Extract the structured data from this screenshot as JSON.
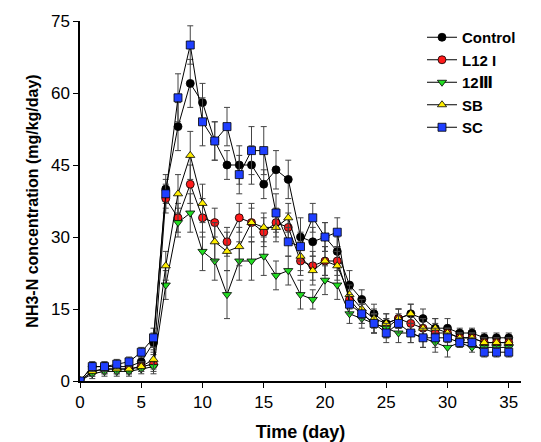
{
  "chart_data": {
    "type": "line",
    "x_label": "Time (day)",
    "y_label": "NH3-N concentration (mg/kg/day)",
    "x": [
      0,
      1,
      2,
      3,
      4,
      5,
      6,
      7,
      8,
      9,
      10,
      11,
      12,
      13,
      14,
      15,
      16,
      17,
      18,
      19,
      20,
      21,
      22,
      23,
      24,
      25,
      26,
      27,
      28,
      29,
      30,
      31,
      32,
      33,
      34,
      35
    ],
    "xlim": [
      0,
      36
    ],
    "xticks": [
      0,
      5,
      10,
      15,
      20,
      25,
      30,
      35
    ],
    "ylim": [
      0,
      75
    ],
    "yticks": [
      0,
      15,
      30,
      45,
      60,
      75
    ],
    "grid": false,
    "legend": "upper right",
    "series": [
      {
        "name": "Control",
        "color": "#000000",
        "marker": "circle",
        "values": [
          0,
          3,
          3,
          3,
          3,
          4,
          8,
          40,
          53,
          62,
          58,
          50,
          45,
          45,
          45,
          41,
          44,
          42,
          30,
          29,
          30,
          27,
          20,
          17,
          14,
          12,
          13,
          14,
          13,
          11,
          11,
          10,
          10,
          9,
          9,
          9
        ],
        "errors": [
          0.5,
          1,
          1,
          1,
          1,
          1,
          2,
          3,
          5,
          5,
          4,
          4,
          3,
          4,
          4,
          3,
          4,
          4,
          4,
          3,
          3,
          3,
          3,
          2,
          2,
          2,
          2,
          2,
          2,
          2,
          2,
          1,
          1,
          1,
          1,
          1
        ]
      },
      {
        "name": "L12 I",
        "color": "#ff1a1a",
        "marker": "circle",
        "values": [
          0,
          2,
          2.5,
          2.5,
          2.5,
          3,
          3.5,
          38,
          34,
          41,
          34,
          33,
          29,
          34,
          33,
          31,
          33,
          32,
          25,
          24,
          25,
          25,
          17,
          14,
          12,
          11,
          13,
          12,
          11,
          10,
          10,
          9,
          9,
          8,
          8,
          8
        ],
        "errors": [
          0.5,
          1,
          1,
          1,
          1,
          1,
          2,
          3,
          3,
          4,
          4,
          3,
          3,
          3,
          3,
          3,
          3,
          3,
          3,
          3,
          3,
          3,
          2,
          2,
          2,
          2,
          2,
          2,
          2,
          2,
          1,
          1,
          1,
          1,
          1,
          1
        ]
      },
      {
        "name": "12Ⅲ",
        "color": "#22dd22",
        "marker": "triangle-down",
        "values": [
          0,
          1.5,
          2,
          2,
          2,
          2.5,
          3,
          20,
          33,
          35,
          27,
          25,
          18,
          25,
          25,
          26,
          22,
          23,
          18,
          17,
          21,
          20,
          14,
          13,
          12,
          11,
          10,
          10,
          9,
          8,
          7,
          8,
          7,
          7,
          7,
          7
        ],
        "errors": [
          0.5,
          1,
          1,
          1,
          1,
          1,
          1,
          3,
          3,
          4,
          4,
          4,
          5,
          4,
          4,
          4,
          3,
          3,
          3,
          2,
          3,
          3,
          2,
          2,
          2,
          2,
          2,
          2,
          2,
          2,
          2,
          1,
          1,
          1,
          1,
          1
        ]
      },
      {
        "name": "SB",
        "color": "#ffee00",
        "marker": "triangle-up",
        "values": [
          0,
          2,
          2.5,
          2.5,
          2.5,
          3,
          4.5,
          24,
          39,
          47,
          37,
          29,
          27,
          28,
          33,
          32,
          32,
          34,
          26,
          23,
          25,
          24,
          18,
          15,
          13,
          12,
          13,
          14,
          11,
          11,
          10,
          9,
          9,
          8,
          8,
          8
        ],
        "errors": [
          0.5,
          1,
          1,
          1,
          1,
          1,
          2,
          3,
          4,
          5,
          4,
          4,
          4,
          4,
          4,
          3,
          3,
          3,
          3,
          3,
          3,
          3,
          2,
          2,
          2,
          2,
          2,
          2,
          2,
          2,
          1,
          1,
          1,
          1,
          1,
          1
        ]
      },
      {
        "name": "SC",
        "color": "#1f3fff",
        "marker": "square",
        "values": [
          0,
          3,
          3,
          3.5,
          4,
          6,
          9,
          39,
          59,
          70,
          54,
          50,
          53,
          43,
          48,
          48,
          35,
          29,
          28,
          34,
          30,
          31,
          16,
          14,
          12,
          10,
          12,
          10,
          9,
          9,
          9,
          8,
          8,
          6,
          6,
          6
        ],
        "errors": [
          0.5,
          1,
          1,
          1,
          1,
          1,
          2,
          3,
          5,
          4,
          5,
          4,
          4,
          4,
          5,
          5,
          4,
          3,
          3,
          3,
          3,
          3,
          2,
          2,
          2,
          2,
          2,
          2,
          2,
          2,
          1,
          1,
          1,
          1,
          1,
          1
        ]
      }
    ]
  }
}
